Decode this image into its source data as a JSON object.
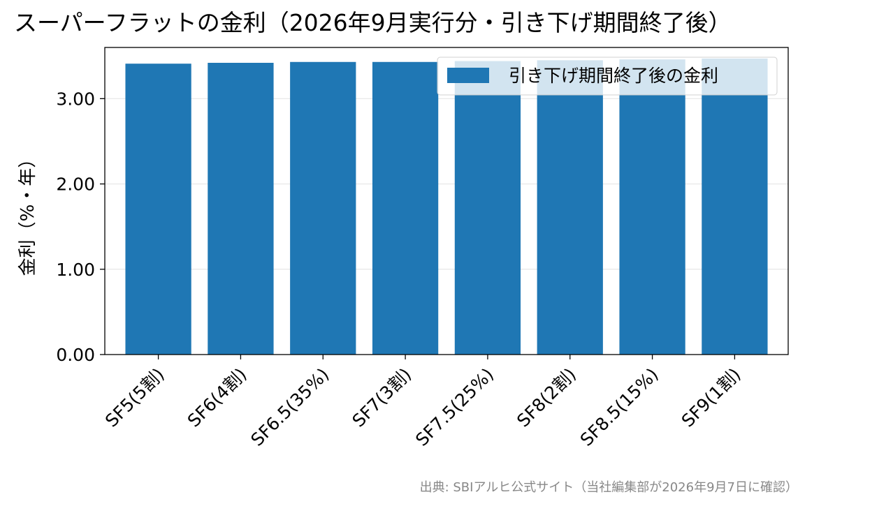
{
  "chart_data": {
    "type": "bar",
    "title": "スーパーフラットの金利（2026年9月実行分・引き下げ期間終了後）",
    "xlabel": "",
    "ylabel": "金利（%・年）",
    "categories": [
      "SF5(5割)",
      "SF6(4割)",
      "SF6.5(35%)",
      "SF7(3割)",
      "SF7.5(25%)",
      "SF8(2割)",
      "SF8.5(15%)",
      "SF9(1割)"
    ],
    "series": [
      {
        "name": "引き下げ期間終了後の金利",
        "values": [
          3.41,
          3.42,
          3.43,
          3.43,
          3.44,
          3.45,
          3.46,
          3.47
        ],
        "color": "#1f77b4"
      }
    ],
    "ylim": [
      0,
      3.6
    ],
    "yticks": [
      "0.00",
      "1.00",
      "2.00",
      "3.00"
    ],
    "ytick_values": [
      0,
      1,
      2,
      3
    ],
    "grid": "horizontal",
    "legend_position": "top-right",
    "source": "出典: SBIアルヒ公式サイト（当社編集部が2026年9月7日に確認）"
  }
}
